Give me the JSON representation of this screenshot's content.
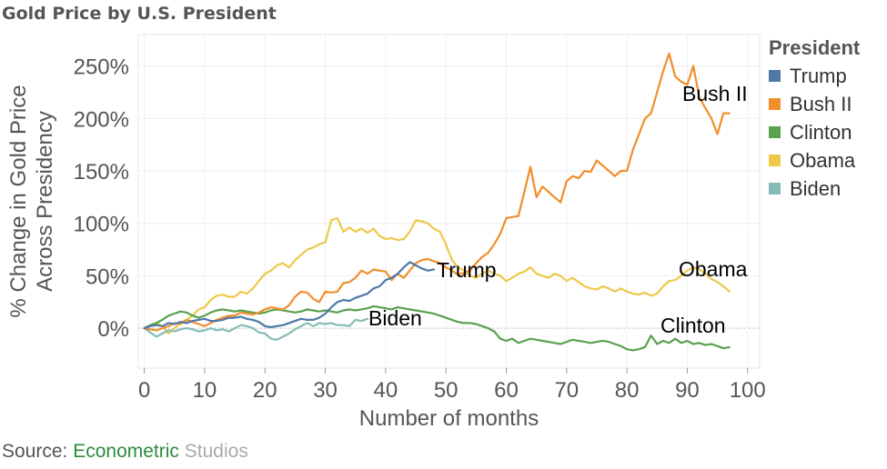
{
  "chart_data": {
    "type": "line",
    "title": "Gold Price by U.S. President",
    "xlabel": "Number of months",
    "ylabel": [
      "% Change in Gold Price",
      "Across Presidency"
    ],
    "xlim": [
      -1,
      102
    ],
    "ylim": [
      -38,
      280
    ],
    "xticks": [
      0,
      10,
      20,
      30,
      40,
      50,
      60,
      70,
      80,
      90,
      100
    ],
    "yticks": [
      0,
      50,
      100,
      150,
      200,
      250
    ],
    "ytick_labels": [
      "0%",
      "50%",
      "100%",
      "150%",
      "200%",
      "250%"
    ],
    "grid": true,
    "legend_title": "President",
    "legend_position": "right",
    "series": [
      {
        "name": "Trump",
        "color": "#4e79a7",
        "label": "Trump",
        "x": [
          0,
          1,
          2,
          3,
          4,
          5,
          6,
          7,
          8,
          9,
          10,
          11,
          12,
          13,
          14,
          15,
          16,
          17,
          18,
          19,
          20,
          21,
          22,
          23,
          24,
          25,
          26,
          27,
          28,
          29,
          30,
          31,
          32,
          33,
          34,
          35,
          36,
          37,
          38,
          39,
          40,
          41,
          42,
          43,
          44,
          45,
          46,
          47,
          48
        ],
        "y": [
          0,
          2,
          3,
          2,
          5,
          4,
          6,
          5,
          7,
          8,
          9,
          7,
          7,
          8,
          10,
          10,
          11,
          9,
          8,
          6,
          2,
          1,
          2,
          3,
          5,
          7,
          9,
          8,
          8,
          10,
          14,
          20,
          25,
          27,
          26,
          29,
          31,
          33,
          38,
          40,
          46,
          48,
          52,
          58,
          63,
          60,
          57,
          55,
          56
        ]
      },
      {
        "name": "Bush II",
        "color": "#f28e2b",
        "label": "Bush II",
        "x": [
          0,
          1,
          2,
          3,
          4,
          5,
          6,
          7,
          8,
          9,
          10,
          11,
          12,
          13,
          14,
          15,
          16,
          17,
          18,
          19,
          20,
          21,
          22,
          23,
          24,
          25,
          26,
          27,
          28,
          29,
          30,
          31,
          32,
          33,
          34,
          35,
          36,
          37,
          38,
          39,
          40,
          41,
          42,
          43,
          44,
          45,
          46,
          47,
          48,
          49,
          50,
          51,
          52,
          53,
          54,
          55,
          56,
          57,
          58,
          59,
          60,
          61,
          62,
          63,
          64,
          65,
          66,
          67,
          68,
          69,
          70,
          71,
          72,
          73,
          74,
          75,
          76,
          77,
          78,
          79,
          80,
          81,
          82,
          83,
          84,
          85,
          86,
          87,
          88,
          89,
          90,
          91,
          92,
          93,
          94,
          95,
          96,
          97
        ],
        "y": [
          0,
          -1,
          -2,
          0,
          2,
          5,
          4,
          8,
          6,
          4,
          2,
          5,
          8,
          10,
          12,
          12,
          15,
          14,
          13,
          15,
          18,
          20,
          19,
          18,
          22,
          30,
          35,
          34,
          28,
          25,
          35,
          34,
          35,
          43,
          44,
          48,
          55,
          52,
          56,
          55,
          54,
          46,
          52,
          48,
          55,
          62,
          65,
          66,
          64,
          62,
          58,
          55,
          51,
          53,
          55,
          62,
          68,
          72,
          80,
          90,
          105,
          106,
          107,
          130,
          154,
          125,
          135,
          130,
          125,
          120,
          140,
          145,
          143,
          150,
          149,
          160,
          155,
          150,
          145,
          150,
          150,
          170,
          185,
          200,
          205,
          225,
          245,
          262,
          240,
          235,
          232,
          250,
          220,
          210,
          200,
          185,
          205,
          205
        ]
      },
      {
        "name": "Clinton",
        "color": "#59a14f",
        "label": "Clinton",
        "x": [
          0,
          1,
          2,
          3,
          4,
          5,
          6,
          7,
          8,
          9,
          10,
          11,
          12,
          13,
          14,
          15,
          16,
          17,
          18,
          19,
          20,
          21,
          22,
          23,
          24,
          25,
          26,
          27,
          28,
          29,
          30,
          31,
          32,
          33,
          34,
          35,
          36,
          37,
          38,
          39,
          40,
          41,
          42,
          43,
          44,
          45,
          46,
          47,
          48,
          49,
          50,
          51,
          52,
          53,
          54,
          55,
          56,
          57,
          58,
          59,
          60,
          61,
          62,
          63,
          64,
          65,
          66,
          67,
          68,
          69,
          70,
          71,
          72,
          73,
          74,
          75,
          76,
          77,
          78,
          79,
          80,
          81,
          82,
          83,
          84,
          85,
          86,
          87,
          88,
          89,
          90,
          91,
          92,
          93,
          94,
          95,
          96,
          97
        ],
        "y": [
          0,
          3,
          5,
          8,
          12,
          14,
          16,
          15,
          12,
          10,
          12,
          15,
          17,
          18,
          17,
          16,
          17,
          16,
          15,
          14,
          15,
          17,
          18,
          17,
          16,
          15,
          16,
          18,
          17,
          16,
          17,
          16,
          15,
          17,
          18,
          17,
          18,
          19,
          21,
          20,
          19,
          18,
          20,
          19,
          18,
          17,
          16,
          15,
          14,
          12,
          10,
          8,
          6,
          5,
          5,
          4,
          2,
          0,
          -3,
          -10,
          -12,
          -10,
          -14,
          -12,
          -10,
          -11,
          -12,
          -13,
          -14,
          -15,
          -13,
          -11,
          -12,
          -13,
          -14,
          -13,
          -12,
          -13,
          -15,
          -17,
          -20,
          -21,
          -20,
          -18,
          -7,
          -15,
          -12,
          -14,
          -10,
          -14,
          -12,
          -15,
          -14,
          -16,
          -15,
          -17,
          -19,
          -18
        ]
      },
      {
        "name": "Obama",
        "color": "#edc948",
        "label": "Obama",
        "x": [
          0,
          1,
          2,
          3,
          4,
          5,
          6,
          7,
          8,
          9,
          10,
          11,
          12,
          13,
          14,
          15,
          16,
          17,
          18,
          19,
          20,
          21,
          22,
          23,
          24,
          25,
          26,
          27,
          28,
          29,
          30,
          31,
          32,
          33,
          34,
          35,
          36,
          37,
          38,
          39,
          40,
          41,
          42,
          43,
          44,
          45,
          46,
          47,
          48,
          49,
          50,
          51,
          52,
          53,
          54,
          55,
          56,
          57,
          58,
          59,
          60,
          61,
          62,
          63,
          64,
          65,
          66,
          67,
          68,
          69,
          70,
          71,
          72,
          73,
          74,
          75,
          76,
          77,
          78,
          79,
          80,
          81,
          82,
          83,
          84,
          85,
          86,
          87,
          88,
          89,
          90,
          91,
          92,
          93,
          94,
          95,
          96,
          97
        ],
        "y": [
          0,
          3,
          5,
          2,
          -5,
          0,
          5,
          8,
          12,
          18,
          20,
          27,
          31,
          32,
          30,
          30,
          35,
          33,
          38,
          45,
          52,
          55,
          60,
          62,
          58,
          65,
          70,
          75,
          77,
          80,
          82,
          103,
          105,
          92,
          96,
          92,
          95,
          91,
          95,
          88,
          85,
          86,
          84,
          85,
          92,
          103,
          102,
          100,
          95,
          92,
          80,
          65,
          58,
          55,
          50,
          48,
          52,
          55,
          52,
          50,
          45,
          48,
          52,
          54,
          58,
          52,
          50,
          48,
          52,
          50,
          45,
          48,
          44,
          40,
          38,
          37,
          40,
          38,
          35,
          38,
          35,
          33,
          32,
          34,
          31,
          33,
          40,
          45,
          46,
          50,
          55,
          58,
          56,
          52,
          47,
          44,
          40,
          35
        ]
      },
      {
        "name": "Biden",
        "color": "#86bcb6",
        "label": "Biden",
        "x": [
          0,
          1,
          2,
          3,
          4,
          5,
          6,
          7,
          8,
          9,
          10,
          11,
          12,
          13,
          14,
          15,
          16,
          17,
          18,
          19,
          20,
          21,
          22,
          23,
          24,
          25,
          26,
          27,
          28,
          29,
          30,
          31,
          32,
          33,
          34,
          35,
          36,
          37
        ],
        "y": [
          0,
          -4,
          -8,
          -5,
          -2,
          -3,
          -1,
          0,
          -1,
          -3,
          -2,
          0,
          -2,
          -1,
          -3,
          0,
          3,
          2,
          0,
          -4,
          -5,
          -10,
          -11,
          -8,
          -5,
          -1,
          2,
          5,
          2,
          5,
          4,
          5,
          3,
          3,
          2,
          8,
          7,
          9
        ]
      }
    ],
    "annotations": [
      {
        "text": "Bush II",
        "series": "Bush II"
      },
      {
        "text": "Obama",
        "series": "Obama"
      },
      {
        "text": "Trump",
        "series": "Trump"
      },
      {
        "text": "Biden",
        "series": "Biden"
      },
      {
        "text": "Clinton",
        "series": "Clinton"
      }
    ]
  },
  "source": {
    "prefix": "Source: ",
    "brand1": "Econometric",
    "brand1_color": "#2e8b3c",
    "brand2": " Studios",
    "brand2_color": "#aaaaaa"
  }
}
